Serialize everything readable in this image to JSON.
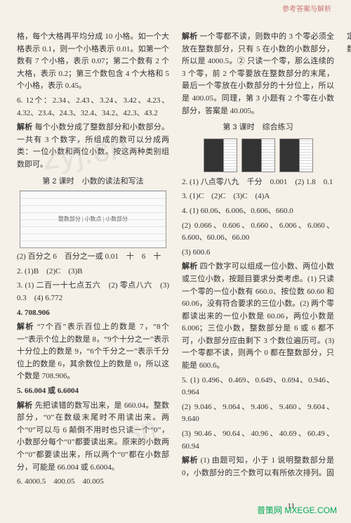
{
  "header": "参考答案与解析",
  "left": {
    "p1": "格，每个大格再平均分成 10 小格。如一个大格表示 0.1，则一个小格表示 0.01。如第一个数有 7 个小格，表示 0.07；第二个数有 2 个大格，表示 0.2；第三个数包含 4 个大格和 5 个小格，表示 0.45。",
    "q6_head": "6. 12个：2.34、2.43、3.24、3.42、4.23、4.32、23.4、24.3、32.4、34.2、42.3、43.2",
    "q6_jiexi": "每个小数分成了整数部分和小数部分。一共有 3 个数字，所组成的数可以分成两类：一位小数和两位小数。按这两种类别组数即可。",
    "sec2_title": "第 2 课时　小数的读法和写法",
    "q1_2": "(2) 百分之 6　百分之一或 0.01　十　6　十",
    "q2": "2. (1)B　(2)C　(3)B",
    "q3": "3. (1) 二百一十七点五六　(2) 零点八六　(3) 0.3　(4) 6.772",
    "q4_head": "4. 708.906",
    "q4_jiexi": "“7个百”表示百位上的数是 7，“8个一”表示个位上的数是 8，“9个十分之一”表示十分位上的数是 9，“6个千分之一”表示千分位上的数是 6，其余数位上的数是 0，所以这个数是 708.906。",
    "q5_head": "5. 66.004 或 6.6004",
    "q5_jiexi": "先把读错的数写出来，是 660.04。整数部分，“0”在数级末尾时不用读出来。两个“0”可以与 6 颠倒不用时也只读一个“0”，小数部分每个“0”都要读出来。原来的小数两个“0”都要读出来，所以两个“0”都在小数部分，可能是 66.004 或 6.6004。",
    "q6_bottom": "6. 4000.5　400.05　40.005"
  },
  "right": {
    "r_jiexi1": "一个零都不读，则数中的 3 个零必须全放在整数部分，只有 5 在小数的小数部分，所以是 4000.5。② 只读一个零，那么连续的 3 个零，前 2 个零要放在整数部分的末尾，最后一个零放在小数部分的十分位上，所以是 400.05。同理，第 3 小题有 2 个零在小数部分，答案是 40.005。",
    "sec3_title": "第 3 课时　综合练习",
    "q2r": "2. (1) 八点零八九　千分　0.001　(2) 1.8　0.1",
    "q3r": "3. (1)C　(2)C　(3)C　(4)A",
    "q4r_1": "4. (1) 60.06、6.006、0.606、660.0",
    "q4r_2": "(2) 0.066、0.606、0.660、6.006、6.060、6.600、60.06、66.00",
    "q4r_3": "(3) 600.6",
    "q4r_jiexi": "四个数字可以组成一位小数、两位小数或三位小数，按题目要求分类考虑。(1) 只读一个零的一位小数有 660.0、按位数 60.60 和 60.06，没有符合要求的三位小数。(2) 两个零都读出来的一位小数是 60.06，两位小数是 6.006；三位小数，整数部分是 6 或 6 都不可，小数部分应由剩下 3 个数位遍历可。(3) 一个零都不读，则两个 0 都在整数部分，只能是 600.6。",
    "q5r_1": "5. (1) 0.496、0.469、0.649、0.694、0.946、0.964",
    "q5r_2": "(2) 9.046、9.064、9.406、9.460、9.604、9.640",
    "q5r_3": "(3) 90.46、90.64、40.96、40.69、60.49、60.94",
    "q5r_jiexi": "(1) 由题可知，小于 1 说明整数部分是 0，小数部分的三个数可以有所依次排列。固定十分位上的数字后，百分位和千分位上的数字可以交换位置。照这"
  },
  "pageNumber": "11",
  "footerLogo": "普策网 MXEGE.COM"
}
